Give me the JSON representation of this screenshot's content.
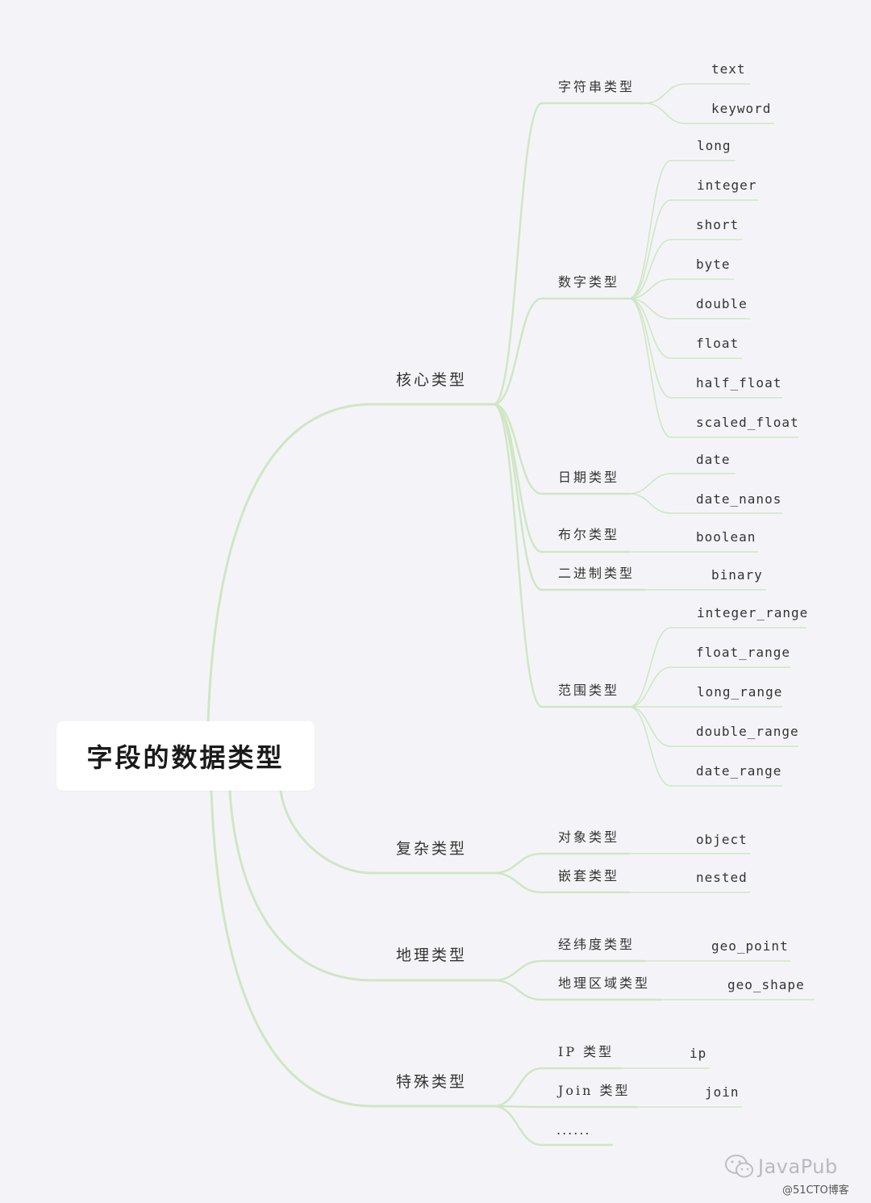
{
  "colors": {
    "line": "#cfe6c4",
    "background": "#f4f4f8",
    "rootBox": "#ffffff"
  },
  "root": {
    "title": "字段的数据类型"
  },
  "branches": [
    {
      "label": "核心类型",
      "children": [
        {
          "label": "字符串类型",
          "leaves": [
            "text",
            "keyword"
          ]
        },
        {
          "label": "数字类型",
          "leaves": [
            "long",
            "integer",
            "short",
            "byte",
            "double",
            "float",
            "half_float",
            "scaled_float"
          ]
        },
        {
          "label": "日期类型",
          "leaves": [
            "date",
            "date_nanos"
          ]
        },
        {
          "label": "布尔类型",
          "leaves": [
            "boolean"
          ]
        },
        {
          "label": "二进制类型",
          "leaves": [
            "binary"
          ]
        },
        {
          "label": "范围类型",
          "leaves": [
            "integer_range",
            "float_range",
            "long_range",
            "double_range",
            "date_range"
          ]
        }
      ]
    },
    {
      "label": "复杂类型",
      "children": [
        {
          "label": "对象类型",
          "leaves": [
            "object"
          ]
        },
        {
          "label": "嵌套类型",
          "leaves": [
            "nested"
          ]
        }
      ]
    },
    {
      "label": "地理类型",
      "children": [
        {
          "label": "经纬度类型",
          "leaves": [
            "geo_point"
          ]
        },
        {
          "label": "地理区域类型",
          "leaves": [
            "geo_shape"
          ]
        }
      ]
    },
    {
      "label": "特殊类型",
      "children": [
        {
          "label": "IP 类型",
          "leaves": [
            "ip"
          ]
        },
        {
          "label": "Join 类型",
          "leaves": [
            "join"
          ]
        },
        {
          "label": "......",
          "leaves": []
        }
      ]
    }
  ],
  "watermark": {
    "brand": "JavaPub",
    "site": "@51CTO博客",
    "icon": "wechat-icon"
  }
}
